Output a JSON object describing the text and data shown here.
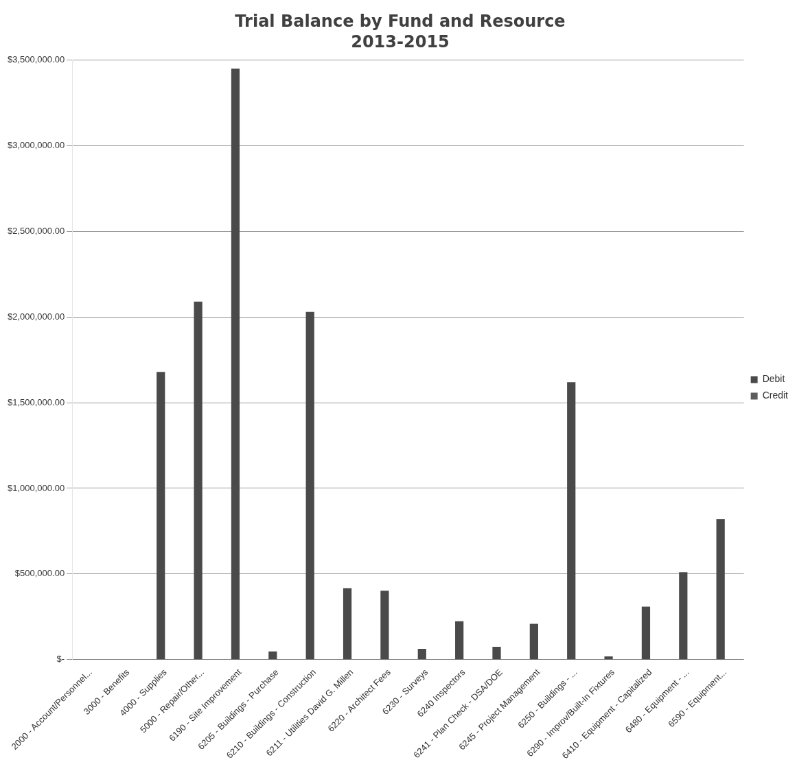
{
  "chart_data": {
    "type": "bar",
    "title": "Trial Balance by Fund and Resource",
    "subtitle": "2013-2015",
    "categories": [
      "2000 - Account/Personnel...",
      "3000 - Benefits",
      "4000 - Supplies",
      "5000 - Repair/Other...",
      "6190 - Site Improvement",
      "6205 - Buildings - Purchase",
      "6210 - Buildings - Construction",
      "6211 - Utilities David G. Millen",
      "6220 - Architect Fees",
      "6230 - Surveys",
      "6240 Inspectors",
      "6241 - Plan Check - DSA/DOE",
      "6245 - Project Management",
      "6250 - Buildings - ...",
      "6290 - Improv/Built-In Fixtures",
      "6410 - Equipment - Capitalized",
      "6480 - Equipment - ...",
      "6590 - Equipment..."
    ],
    "series": [
      {
        "name": "Debit",
        "color": "#4a4a4a",
        "values": [
          0,
          0,
          1680000,
          2090000,
          3450000,
          48000,
          2030000,
          417000,
          402000,
          63000,
          224000,
          75000,
          209000,
          1620000,
          19000,
          309000,
          511000,
          820000
        ]
      },
      {
        "name": "Credit",
        "color": "#5c5c5c",
        "values": [
          0,
          0,
          0,
          0,
          0,
          0,
          0,
          0,
          0,
          0,
          0,
          0,
          0,
          0,
          0,
          0,
          0,
          0
        ]
      }
    ],
    "ylim": [
      0,
      3500000
    ],
    "yticks": [
      {
        "value": 0,
        "label": "$-"
      },
      {
        "value": 500000,
        "label": "$500,000.00"
      },
      {
        "value": 1000000,
        "label": "$1,000,000.00"
      },
      {
        "value": 1500000,
        "label": "$1,500,000.00"
      },
      {
        "value": 2000000,
        "label": "$2,000,000.00"
      },
      {
        "value": 2500000,
        "label": "$2,500,000.00"
      },
      {
        "value": 3000000,
        "label": "$3,000,000.00"
      },
      {
        "value": 3500000,
        "label": "$3,500,000.00"
      }
    ],
    "grid": "y",
    "legend": "right"
  }
}
